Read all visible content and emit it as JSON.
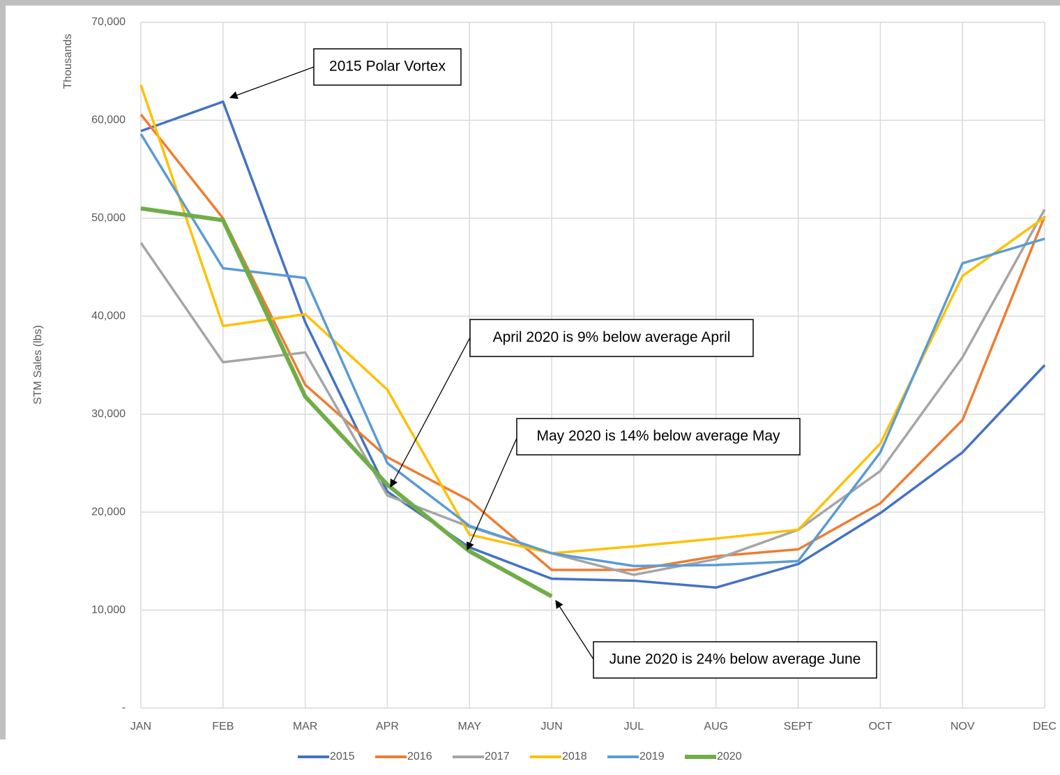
{
  "chart_data": {
    "type": "line",
    "y_axis_label": "STM Sales (lbs)",
    "y_axis_units": "Thousands",
    "categories": [
      "JAN",
      "FEB",
      "MAR",
      "APR",
      "MAY",
      "JUN",
      "JUL",
      "AUG",
      "SEPT",
      "OCT",
      "NOV",
      "DEC"
    ],
    "ylim": [
      0,
      70000
    ],
    "yticks": [
      {
        "value": 0,
        "label": "-"
      },
      {
        "value": 10000,
        "label": "10,000"
      },
      {
        "value": 20000,
        "label": "20,000"
      },
      {
        "value": 30000,
        "label": "30,000"
      },
      {
        "value": 40000,
        "label": "40,000"
      },
      {
        "value": 50000,
        "label": "50,000"
      },
      {
        "value": 60000,
        "label": "60,000"
      },
      {
        "value": 70000,
        "label": "70,000"
      }
    ],
    "grid": true,
    "legend": "bottom",
    "series": [
      {
        "name": "2015",
        "color": "#4472c4",
        "values": [
          58900,
          61900,
          39400,
          22100,
          16400,
          13200,
          13000,
          12300,
          14700,
          19900,
          26100,
          35000
        ]
      },
      {
        "name": "2016",
        "color": "#ed7d31",
        "values": [
          60600,
          50000,
          33000,
          25600,
          21200,
          14100,
          14100,
          15500,
          16200,
          20900,
          29400,
          50200
        ]
      },
      {
        "name": "2017",
        "color": "#a5a5a5",
        "values": [
          47500,
          35300,
          36300,
          21700,
          18500,
          15800,
          13600,
          15200,
          18200,
          24200,
          35800,
          50900
        ]
      },
      {
        "name": "2018",
        "color": "#ffc000",
        "values": [
          63600,
          39000,
          40200,
          32500,
          17700,
          15800,
          16500,
          17300,
          18200,
          27000,
          44100,
          50100
        ]
      },
      {
        "name": "2019",
        "color": "#5b9bd5",
        "values": [
          58600,
          44900,
          43900,
          25000,
          18600,
          15800,
          14500,
          14600,
          15000,
          26100,
          45400,
          47900
        ]
      },
      {
        "name": "2020",
        "color": "#70ad47",
        "values": [
          51000,
          49800,
          31800,
          22800,
          16000,
          11400,
          null,
          null,
          null,
          null,
          null,
          null
        ]
      }
    ],
    "annotations": [
      {
        "text": "2015 Polar Vortex"
      },
      {
        "text": "April 2020 is 9% below average April"
      },
      {
        "text": "May 2020 is 14% below average May"
      },
      {
        "text": "June 2020 is 24% below average June"
      }
    ]
  }
}
